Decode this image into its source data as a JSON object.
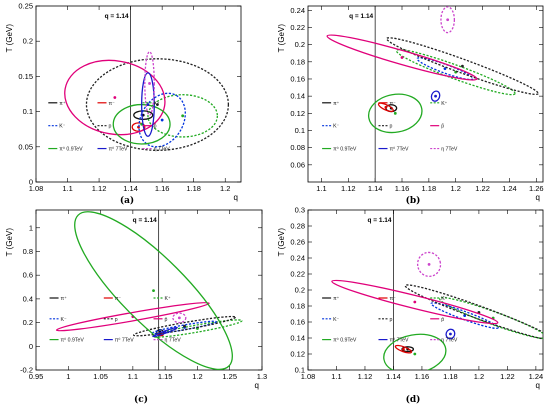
{
  "colors": {
    "pi_plus": "#111111",
    "pi_minus": "#e00000",
    "k_plus": "#22aa22",
    "k_minus": "#0033dd",
    "proton": "#222222",
    "pbar": "#e0007a",
    "omega_09": "#22aa22",
    "omega_7": "#1a1acc",
    "eta_7": "#cc44cc"
  },
  "legend": [
    "π⁺",
    "π⁻",
    "K⁺",
    "K⁻",
    "p",
    "p̄",
    "π⁰ 0.9TeV",
    "π⁰ 7TeV",
    "η 7TeV"
  ],
  "chart_data": [
    {
      "type": "scatter",
      "panel_label": "(a)",
      "xlabel": "q",
      "ylabel": "T (GeV)",
      "xlim": [
        1.08,
        1.21
      ],
      "ylim": [
        0,
        0.25
      ],
      "xticks": [
        1.08,
        1.1,
        1.12,
        1.14,
        1.16,
        1.18,
        1.2
      ],
      "yticks": [
        0,
        0.05,
        0.1,
        0.15,
        0.2,
        0.25
      ],
      "q_line": 1.14,
      "q_label": "q = 1.14",
      "series": [
        {
          "name": "π⁺",
          "x": 1.148,
          "y": 0.095,
          "ellipse": {
            "rx": 0.006,
            "ry": 0.006,
            "angle": 0,
            "style": "solid"
          }
        },
        {
          "name": "π⁻",
          "x": 1.145,
          "y": 0.078,
          "ellipse": {
            "rx": 0.004,
            "ry": 0.006,
            "angle": 0,
            "style": "solid"
          }
        },
        {
          "name": "K⁺",
          "x": 1.173,
          "y": 0.094,
          "ellipse": {
            "rx": 0.022,
            "ry": 0.03,
            "angle": 0,
            "style": "dashed"
          }
        },
        {
          "name": "K⁻",
          "x": 1.16,
          "y": 0.088,
          "ellipse": {
            "rx": 0.018,
            "ry": 0.03,
            "angle": -60,
            "style": "dashed"
          }
        },
        {
          "name": "p",
          "x": 1.157,
          "y": 0.11,
          "ellipse": {
            "rx": 0.045,
            "ry": 0.065,
            "angle": 0,
            "style": "dashed"
          }
        },
        {
          "name": "p̄",
          "x": 1.13,
          "y": 0.12,
          "ellipse": {
            "rx": 0.032,
            "ry": 0.052,
            "angle": 10,
            "style": "solid"
          }
        },
        {
          "name": "π⁰ 0.9TeV",
          "x": 1.147,
          "y": 0.082,
          "ellipse": {
            "rx": 0.018,
            "ry": 0.028,
            "angle": 0,
            "style": "solid"
          }
        },
        {
          "name": "π⁰ 7TeV",
          "x": 1.151,
          "y": 0.11,
          "ellipse": {
            "rx": 0.004,
            "ry": 0.045,
            "angle": 0,
            "style": "solid"
          }
        },
        {
          "name": "η 7TeV",
          "x": 1.152,
          "y": 0.14,
          "ellipse": {
            "rx": 0.003,
            "ry": 0.045,
            "angle": 0,
            "style": "dashed"
          }
        }
      ]
    },
    {
      "type": "scatter",
      "panel_label": "(b)",
      "xlabel": "q",
      "ylabel": "T (GeV)",
      "xlim": [
        1.09,
        1.265
      ],
      "ylim": [
        0.04,
        0.245
      ],
      "xticks": [
        1.1,
        1.12,
        1.14,
        1.16,
        1.18,
        1.2,
        1.22,
        1.24,
        1.26
      ],
      "yticks": [
        0.06,
        0.08,
        0.1,
        0.12,
        0.14,
        0.16,
        0.18,
        0.2,
        0.22,
        0.24
      ],
      "q_line": 1.14,
      "q_label": "q = 1.14",
      "series": [
        {
          "name": "π⁺",
          "x": 1.152,
          "y": 0.126,
          "ellipse": {
            "rx": 0.004,
            "ry": 0.004,
            "angle": 0,
            "style": "solid"
          }
        },
        {
          "name": "π⁻",
          "x": 1.148,
          "y": 0.127,
          "ellipse": {
            "rx": 0.006,
            "ry": 0.003,
            "angle": 25,
            "style": "solid"
          }
        },
        {
          "name": "K⁺",
          "x": 1.2,
          "y": 0.168,
          "ellipse": {
            "rx": 0.047,
            "ry": 0.008,
            "angle": 20,
            "style": "dashed"
          }
        },
        {
          "name": "K⁻",
          "x": 1.192,
          "y": 0.172,
          "ellipse": {
            "rx": 0.022,
            "ry": 0.005,
            "angle": 20,
            "style": "dashed"
          }
        },
        {
          "name": "p",
          "x": 1.205,
          "y": 0.175,
          "ellipse": {
            "rx": 0.06,
            "ry": 0.008,
            "angle": 20,
            "style": "dashed"
          }
        },
        {
          "name": "p̄",
          "x": 1.16,
          "y": 0.185,
          "ellipse": {
            "rx": 0.058,
            "ry": 0.008,
            "angle": 16,
            "style": "solid"
          }
        },
        {
          "name": "π⁰ 0.9TeV",
          "x": 1.155,
          "y": 0.12,
          "ellipse": {
            "rx": 0.02,
            "ry": 0.022,
            "angle": -10,
            "style": "solid"
          }
        },
        {
          "name": "π⁰ 7TeV",
          "x": 1.185,
          "y": 0.14,
          "ellipse": {
            "rx": 0.003,
            "ry": 0.006,
            "angle": 20,
            "style": "solid"
          }
        },
        {
          "name": "η 7TeV",
          "x": 1.194,
          "y": 0.229,
          "ellipse": {
            "rx": 0.005,
            "ry": 0.015,
            "angle": 0,
            "style": "dashed"
          }
        }
      ]
    },
    {
      "type": "scatter",
      "panel_label": "(c)",
      "xlabel": "q",
      "ylabel": "T (GeV)",
      "xlim": [
        0.95,
        1.3
      ],
      "ylim": [
        -0.2,
        1.15
      ],
      "xticks": [
        0.95,
        1,
        1.05,
        1.1,
        1.15,
        1.2,
        1.25,
        1.3
      ],
      "yticks": [
        -0.2,
        0,
        0.2,
        0.4,
        0.6,
        0.8,
        1
      ],
      "q_line": 1.14,
      "q_label": "q = 1.14",
      "series": [
        {
          "name": "π⁺",
          "x": 1.142,
          "y": 0.12,
          "ellipse": {
            "rx": 0.005,
            "ry": 0.02,
            "angle": 0,
            "style": "solid"
          }
        },
        {
          "name": "π⁻",
          "x": 1.143,
          "y": 0.1,
          "ellipse": {
            "rx": 0.004,
            "ry": 0.01,
            "angle": 0,
            "style": "solid"
          }
        },
        {
          "name": "K⁺",
          "x": 1.2,
          "y": 0.15,
          "ellipse": {
            "rx": 0.07,
            "ry": 0.03,
            "angle": -10,
            "style": "dashed"
          }
        },
        {
          "name": "K⁻",
          "x": 1.18,
          "y": 0.16,
          "ellipse": {
            "rx": 0.05,
            "ry": 0.02,
            "angle": -10,
            "style": "dashed"
          }
        },
        {
          "name": "p",
          "x": 1.18,
          "y": 0.17,
          "ellipse": {
            "rx": 0.08,
            "ry": 0.03,
            "angle": -10,
            "style": "dashed"
          }
        },
        {
          "name": "p̄",
          "x": 1.1,
          "y": 0.25,
          "ellipse": {
            "rx": 0.12,
            "ry": 0.035,
            "angle": -10,
            "style": "solid"
          }
        },
        {
          "name": "π⁰ 0.9TeV",
          "x": 1.132,
          "y": 0.47,
          "ellipse": {
            "rx": 0.05,
            "ry": 0.9,
            "angle": -45,
            "style": "solid"
          }
        },
        {
          "name": "π⁰ 7TeV",
          "x": 1.15,
          "y": 0.12,
          "ellipse": {
            "rx": 0.02,
            "ry": 0.01,
            "angle": -20,
            "style": "solid"
          }
        },
        {
          "name": "η 7TeV",
          "x": 1.172,
          "y": 0.24,
          "ellipse": {
            "rx": 0.01,
            "ry": 0.04,
            "angle": 0,
            "style": "dashed"
          }
        }
      ]
    },
    {
      "type": "scatter",
      "panel_label": "(d)",
      "xlabel": "q",
      "ylabel": "T (GeV)",
      "xlim": [
        1.08,
        1.245
      ],
      "ylim": [
        0.1,
        0.3
      ],
      "xticks": [
        1.08,
        1.1,
        1.12,
        1.14,
        1.16,
        1.18,
        1.2,
        1.22,
        1.24
      ],
      "yticks": [
        0.1,
        0.12,
        0.14,
        0.16,
        0.18,
        0.2,
        0.22,
        0.24,
        0.26,
        0.28,
        0.3
      ],
      "q_line": 1.14,
      "q_label": "q = 1.14",
      "series": [
        {
          "name": "π⁺",
          "x": 1.15,
          "y": 0.126,
          "ellipse": {
            "rx": 0.004,
            "ry": 0.003,
            "angle": 0,
            "style": "solid"
          }
        },
        {
          "name": "π⁻",
          "x": 1.147,
          "y": 0.126,
          "ellipse": {
            "rx": 0.006,
            "ry": 0.003,
            "angle": 20,
            "style": "solid"
          }
        },
        {
          "name": "K⁺",
          "x": 1.21,
          "y": 0.165,
          "ellipse": {
            "rx": 0.04,
            "ry": 0.008,
            "angle": 20,
            "style": "dashed"
          }
        },
        {
          "name": "K⁻",
          "x": 1.19,
          "y": 0.168,
          "ellipse": {
            "rx": 0.025,
            "ry": 0.005,
            "angle": 20,
            "style": "dashed"
          }
        },
        {
          "name": "p",
          "x": 1.2,
          "y": 0.172,
          "ellipse": {
            "rx": 0.055,
            "ry": 0.008,
            "angle": 20,
            "style": "dashed"
          }
        },
        {
          "name": "p̄",
          "x": 1.155,
          "y": 0.185,
          "ellipse": {
            "rx": 0.06,
            "ry": 0.008,
            "angle": 14,
            "style": "solid"
          }
        },
        {
          "name": "π⁰ 0.9TeV",
          "x": 1.155,
          "y": 0.12,
          "ellipse": {
            "rx": 0.022,
            "ry": 0.024,
            "angle": -10,
            "style": "solid"
          }
        },
        {
          "name": "π⁰ 7TeV",
          "x": 1.18,
          "y": 0.145,
          "ellipse": {
            "rx": 0.003,
            "ry": 0.006,
            "angle": 20,
            "style": "solid"
          }
        },
        {
          "name": "η 7TeV",
          "x": 1.165,
          "y": 0.232,
          "ellipse": {
            "rx": 0.008,
            "ry": 0.015,
            "angle": -15,
            "style": "dashed"
          }
        }
      ]
    }
  ]
}
